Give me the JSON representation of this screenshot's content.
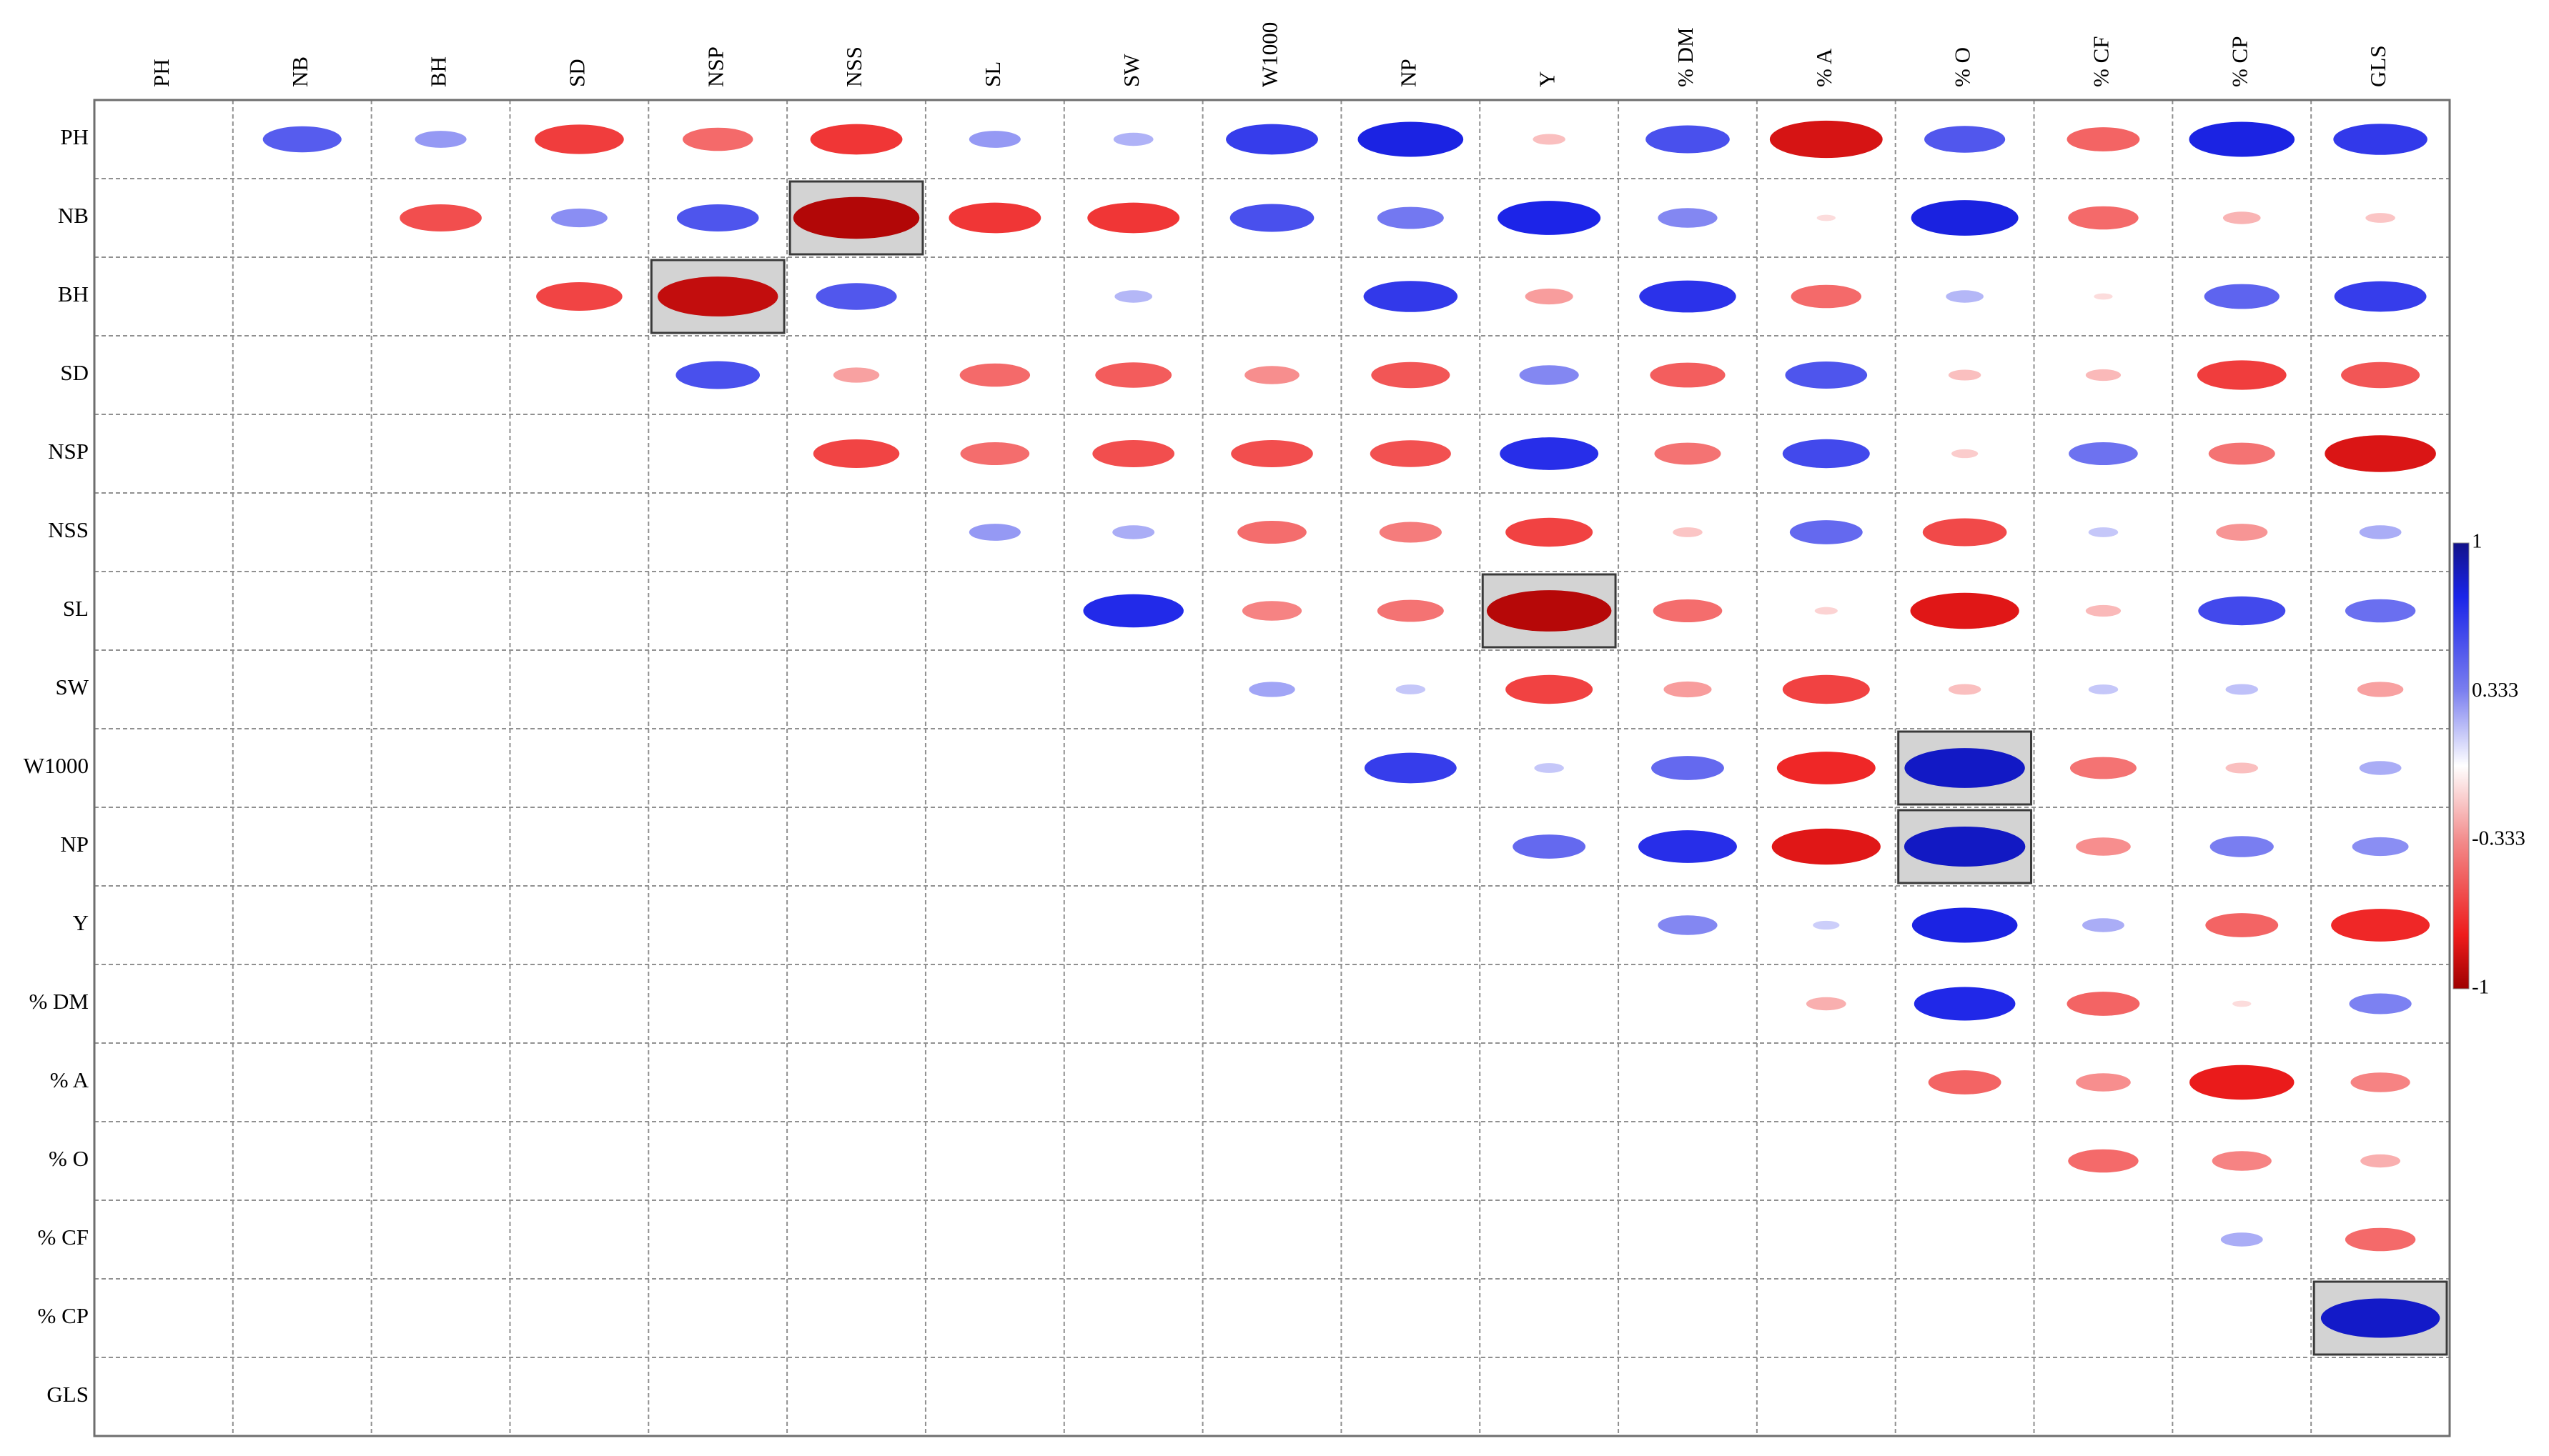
{
  "chart_data": {
    "type": "heatmap",
    "variables": [
      "PH",
      "NB",
      "BH",
      "SD",
      "NSP",
      "NSS",
      "SL",
      "SW",
      "W1000",
      "NP",
      "Y",
      "% DM",
      "% A",
      "% O",
      "% CF",
      "% CP",
      "GLS"
    ],
    "correlations": [
      [
        "PH",
        "NB",
        0.35
      ],
      [
        "PH",
        "BH",
        0.15
      ],
      [
        "PH",
        "SD",
        -0.45
      ],
      [
        "PH",
        "NSP",
        -0.28
      ],
      [
        "PH",
        "NSS",
        -0.48
      ],
      [
        "PH",
        "SL",
        0.15
      ],
      [
        "PH",
        "SW",
        0.09
      ],
      [
        "PH",
        "W1000",
        0.48
      ],
      [
        "PH",
        "NP",
        0.63
      ],
      [
        "PH",
        "Y",
        -0.06
      ],
      [
        "PH",
        "% DM",
        0.4
      ],
      [
        "PH",
        "% A",
        -0.72
      ],
      [
        "PH",
        "% O",
        0.37
      ],
      [
        "PH",
        "% CF",
        -0.3
      ],
      [
        "PH",
        "% CP",
        0.63
      ],
      [
        "PH",
        "GLS",
        0.5
      ],
      [
        "NB",
        "BH",
        -0.38
      ],
      [
        "NB",
        "SD",
        0.18
      ],
      [
        "NB",
        "NSP",
        0.38
      ],
      [
        "NB",
        "NSS",
        -0.9
      ],
      [
        "NB",
        "SL",
        -0.48
      ],
      [
        "NB",
        "SW",
        -0.48
      ],
      [
        "NB",
        "W1000",
        0.4
      ],
      [
        "NB",
        "NP",
        0.25
      ],
      [
        "NB",
        "Y",
        0.6
      ],
      [
        "NB",
        "% DM",
        0.2
      ],
      [
        "NB",
        "% A",
        -0.02
      ],
      [
        "NB",
        "% O",
        0.65
      ],
      [
        "NB",
        "% CF",
        -0.28
      ],
      [
        "NB",
        "% CP",
        -0.08
      ],
      [
        "NB",
        "GLS",
        -0.05
      ],
      [
        "BH",
        "SD",
        -0.42
      ],
      [
        "BH",
        "NSP",
        -0.82
      ],
      [
        "BH",
        "NSS",
        0.37
      ],
      [
        "BH",
        "SW",
        0.08
      ],
      [
        "BH",
        "NP",
        0.5
      ],
      [
        "BH",
        "Y",
        -0.13
      ],
      [
        "BH",
        "% DM",
        0.53
      ],
      [
        "BH",
        "% A",
        -0.28
      ],
      [
        "BH",
        "% O",
        0.08
      ],
      [
        "BH",
        "% CF",
        -0.02
      ],
      [
        "BH",
        "% CP",
        0.32
      ],
      [
        "BH",
        "GLS",
        0.48
      ],
      [
        "SD",
        "NSP",
        0.4
      ],
      [
        "SD",
        "NSS",
        -0.12
      ],
      [
        "SD",
        "SL",
        -0.28
      ],
      [
        "SD",
        "SW",
        -0.33
      ],
      [
        "SD",
        "W1000",
        -0.17
      ],
      [
        "SD",
        "NP",
        -0.35
      ],
      [
        "SD",
        "Y",
        0.2
      ],
      [
        "SD",
        "% DM",
        -0.32
      ],
      [
        "SD",
        "% A",
        0.38
      ],
      [
        "SD",
        "% O",
        -0.06
      ],
      [
        "SD",
        "% CF",
        -0.07
      ],
      [
        "SD",
        "% CP",
        -0.45
      ],
      [
        "SD",
        "GLS",
        -0.35
      ],
      [
        "NSP",
        "NSS",
        -0.42
      ],
      [
        "NSP",
        "SL",
        -0.27
      ],
      [
        "NSP",
        "SW",
        -0.38
      ],
      [
        "NSP",
        "W1000",
        -0.38
      ],
      [
        "NSP",
        "NP",
        -0.37
      ],
      [
        "NSP",
        "Y",
        0.55
      ],
      [
        "NSP",
        "% DM",
        -0.25
      ],
      [
        "NSP",
        "% A",
        0.43
      ],
      [
        "NSP",
        "% O",
        -0.04
      ],
      [
        "NSP",
        "% CF",
        0.27
      ],
      [
        "NSP",
        "% CP",
        -0.25
      ],
      [
        "NSP",
        "GLS",
        -0.7
      ],
      [
        "NSS",
        "SL",
        0.15
      ],
      [
        "NSS",
        "SW",
        0.1
      ],
      [
        "NSS",
        "W1000",
        -0.27
      ],
      [
        "NSS",
        "NP",
        -0.22
      ],
      [
        "NSS",
        "Y",
        -0.43
      ],
      [
        "NSS",
        "% DM",
        -0.05
      ],
      [
        "NSS",
        "% A",
        0.3
      ],
      [
        "NSS",
        "% O",
        -0.4
      ],
      [
        "NSS",
        "% CF",
        0.05
      ],
      [
        "NSS",
        "% CP",
        -0.15
      ],
      [
        "NSS",
        "GLS",
        0.1
      ],
      [
        "SW",
        "SL",
        0.57
      ],
      [
        "SL",
        "W1000",
        -0.2
      ],
      [
        "SL",
        "NP",
        -0.25
      ],
      [
        "SL",
        "Y",
        -0.88
      ],
      [
        "SL",
        "% DM",
        -0.27
      ],
      [
        "SL",
        "% A",
        -0.03
      ],
      [
        "SL",
        "% O",
        -0.67
      ],
      [
        "SL",
        "% CF",
        -0.07
      ],
      [
        "SL",
        "% CP",
        0.43
      ],
      [
        "SL",
        "GLS",
        0.28
      ],
      [
        "SW",
        "W1000",
        0.12
      ],
      [
        "SW",
        "NP",
        0.05
      ],
      [
        "SW",
        "Y",
        -0.43
      ],
      [
        "SW",
        "% DM",
        -0.13
      ],
      [
        "SW",
        "% A",
        -0.43
      ],
      [
        "SW",
        "% O",
        -0.06
      ],
      [
        "SW",
        "% CF",
        0.05
      ],
      [
        "SW",
        "% CP",
        0.06
      ],
      [
        "SW",
        "GLS",
        -0.12
      ],
      [
        "W1000",
        "NP",
        0.48
      ],
      [
        "W1000",
        "Y",
        0.05
      ],
      [
        "W1000",
        "% DM",
        0.3
      ],
      [
        "W1000",
        "% A",
        -0.55
      ],
      [
        "W1000",
        "% O",
        0.82
      ],
      [
        "W1000",
        "% CF",
        -0.25
      ],
      [
        "W1000",
        "% CP",
        -0.06
      ],
      [
        "W1000",
        "GLS",
        0.1
      ],
      [
        "NP",
        "Y",
        0.3
      ],
      [
        "NP",
        "% DM",
        0.55
      ],
      [
        "NP",
        "% A",
        -0.67
      ],
      [
        "NP",
        "% O",
        0.83
      ],
      [
        "NP",
        "% CF",
        -0.17
      ],
      [
        "NP",
        "% CP",
        0.23
      ],
      [
        "NP",
        "GLS",
        0.18
      ],
      [
        "Y",
        "% DM",
        0.2
      ],
      [
        "Y",
        "% A",
        0.04
      ],
      [
        "Y",
        "% O",
        0.63
      ],
      [
        "Y",
        "% CF",
        0.1
      ],
      [
        "Y",
        "% CP",
        -0.3
      ],
      [
        "Y",
        "GLS",
        -0.55
      ],
      [
        "% DM",
        "% A",
        -0.09
      ],
      [
        "% DM",
        "% O",
        0.58
      ],
      [
        "% DM",
        "% CF",
        -0.3
      ],
      [
        "% DM",
        "% CP",
        -0.02
      ],
      [
        "% DM",
        "GLS",
        0.22
      ],
      [
        "% A",
        "% O",
        -0.3
      ],
      [
        "% A",
        "% CF",
        -0.17
      ],
      [
        "% A",
        "% CP",
        -0.62
      ],
      [
        "% A",
        "GLS",
        -0.2
      ],
      [
        "% O",
        "% CF",
        -0.28
      ],
      [
        "% O",
        "% CP",
        -0.2
      ],
      [
        "% O",
        "GLS",
        -0.09
      ],
      [
        "% CF",
        "% CP",
        0.1
      ],
      [
        "% CF",
        "GLS",
        -0.28
      ],
      [
        "% CP",
        "GLS",
        0.8
      ]
    ],
    "highlighted_pairs": [
      [
        "NB",
        "NSS"
      ],
      [
        "BH",
        "NSP"
      ],
      [
        "SL",
        "Y"
      ],
      [
        "W1000",
        "% O"
      ],
      [
        "NP",
        "% O"
      ],
      [
        "% CP",
        "GLS"
      ]
    ],
    "colorbar": {
      "range": [
        -1,
        1
      ],
      "tick_labels": [
        "1",
        "0.333",
        "-0.333",
        "-1"
      ],
      "colors": {
        "positive": "#0a10a8",
        "zero": "#ffffff",
        "negative": "#9e0000"
      }
    },
    "grid": "dashed",
    "legend": "right"
  }
}
